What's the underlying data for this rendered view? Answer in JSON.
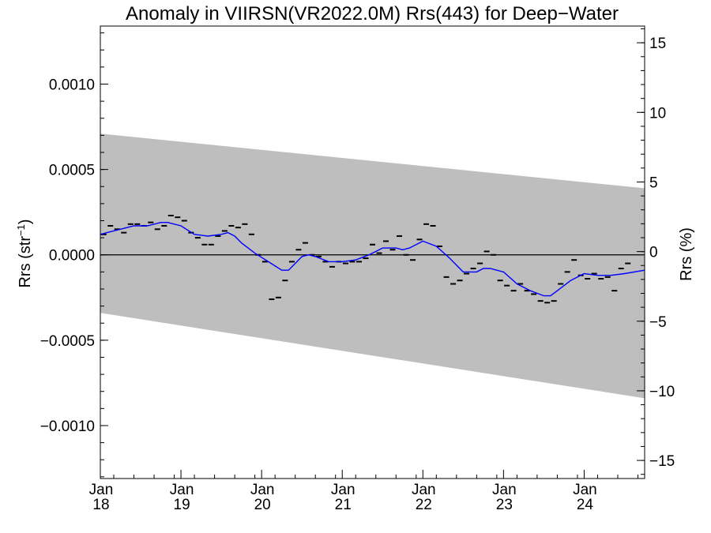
{
  "chart_data": {
    "type": "line",
    "title": "Anomaly in VIIRSN(VR2022.0M) Rrs(443) for Deep−Water",
    "ylabel_left": {
      "base": "Rrs (str",
      "sup": "−1",
      "close": ")"
    },
    "ylabel_right": "Rrs (%)",
    "x_axis": {
      "unit": "months since Jan 2018",
      "range": [
        0,
        81
      ],
      "ticks": [
        {
          "x": 0,
          "month": "Jan",
          "year": "18"
        },
        {
          "x": 12,
          "month": "Jan",
          "year": "19"
        },
        {
          "x": 24,
          "month": "Jan",
          "year": "20"
        },
        {
          "x": 36,
          "month": "Jan",
          "year": "21"
        },
        {
          "x": 48,
          "month": "Jan",
          "year": "22"
        },
        {
          "x": 60,
          "month": "Jan",
          "year": "23"
        },
        {
          "x": 72,
          "month": "Jan",
          "year": "24"
        }
      ]
    },
    "y_left": {
      "range": [
        -0.00131,
        0.00134
      ],
      "ticks": [
        {
          "v": 0.001,
          "label": "0.0010"
        },
        {
          "v": 0.0005,
          "label": "0.0005"
        },
        {
          "v": 0.0,
          "label": "0.0000"
        },
        {
          "v": -0.0005,
          "label": "−0.0005"
        },
        {
          "v": -0.001,
          "label": "−0.0010"
        }
      ]
    },
    "y_right": {
      "range": [
        -16.3,
        16.2
      ],
      "ticks": [
        {
          "v": 15,
          "label": "15"
        },
        {
          "v": 10,
          "label": "10"
        },
        {
          "v": 5,
          "label": "5"
        },
        {
          "v": 0,
          "label": "0"
        },
        {
          "v": -5,
          "label": "−5"
        },
        {
          "v": -10,
          "label": "−10"
        },
        {
          "v": -15,
          "label": "−15"
        }
      ]
    },
    "band": {
      "upper": [
        [
          0,
          0.00071
        ],
        [
          81,
          0.00039
        ]
      ],
      "lower": [
        [
          0,
          -0.00034
        ],
        [
          81,
          -0.00084
        ]
      ],
      "color": "#bebebe"
    },
    "zero_line": 0,
    "monthly_points": [
      [
        0.5,
        0.00012
      ],
      [
        1.5,
        0.00017
      ],
      [
        2.5,
        0.00015
      ],
      [
        3.5,
        0.00013
      ],
      [
        4.5,
        0.00018
      ],
      [
        5.5,
        0.00018
      ],
      [
        6.5,
        0.00017
      ],
      [
        7.5,
        0.00019
      ],
      [
        8.5,
        0.00015
      ],
      [
        9.5,
        0.00017
      ],
      [
        10.5,
        0.00023
      ],
      [
        11.5,
        0.00022
      ],
      [
        12.5,
        0.0002
      ],
      [
        13.5,
        0.00013
      ],
      [
        14.5,
        0.0001
      ],
      [
        15.5,
        6e-05
      ],
      [
        16.5,
        6e-05
      ],
      [
        17.5,
        0.00011
      ],
      [
        18.5,
        0.00014
      ],
      [
        19.5,
        0.00017
      ],
      [
        20.5,
        0.00016
      ],
      [
        21.5,
        0.00018
      ],
      [
        22.5,
        0.00012
      ],
      [
        23.5,
        0.0
      ],
      [
        24.5,
        -4e-05
      ],
      [
        25.5,
        -0.00026
      ],
      [
        26.5,
        -0.00025
      ],
      [
        27.5,
        -0.00015
      ],
      [
        28.5,
        -4e-05
      ],
      [
        29.5,
        3e-05
      ],
      [
        30.5,
        7e-05
      ],
      [
        31.5,
        0.0
      ],
      [
        32.5,
        -1e-05
      ],
      [
        33.5,
        -4e-05
      ],
      [
        34.5,
        -7e-05
      ],
      [
        35.5,
        -4e-05
      ],
      [
        36.5,
        -5e-05
      ],
      [
        37.5,
        -4e-05
      ],
      [
        38.5,
        -4e-05
      ],
      [
        39.5,
        -2e-05
      ],
      [
        40.5,
        6e-05
      ],
      [
        41.5,
        1e-05
      ],
      [
        42.5,
        8e-05
      ],
      [
        43.5,
        3e-05
      ],
      [
        44.5,
        0.00011
      ],
      [
        45.5,
        0.0
      ],
      [
        46.5,
        -3e-05
      ],
      [
        47.5,
        9e-05
      ],
      [
        48.5,
        0.00018
      ],
      [
        49.5,
        0.00017
      ],
      [
        50.5,
        5e-05
      ],
      [
        51.5,
        -0.00013
      ],
      [
        52.5,
        -0.00017
      ],
      [
        53.5,
        -0.00015
      ],
      [
        54.5,
        -0.00011
      ],
      [
        55.5,
        -8e-05
      ],
      [
        56.5,
        -5e-05
      ],
      [
        57.5,
        2e-05
      ],
      [
        58.5,
        0.0
      ],
      [
        59.5,
        -0.00015
      ],
      [
        60.5,
        -0.00018
      ],
      [
        61.5,
        -0.00021
      ],
      [
        62.5,
        -0.00017
      ],
      [
        63.5,
        -0.00021
      ],
      [
        64.5,
        -0.00023
      ],
      [
        65.5,
        -0.00027
      ],
      [
        66.5,
        -0.00028
      ],
      [
        67.5,
        -0.00027
      ],
      [
        68.5,
        -0.00017
      ],
      [
        69.5,
        -0.0001
      ],
      [
        70.5,
        -3e-05
      ],
      [
        71.5,
        -0.00012
      ],
      [
        72.5,
        -0.00014
      ],
      [
        73.5,
        -0.00011
      ],
      [
        74.5,
        -0.00014
      ],
      [
        75.5,
        -0.00013
      ],
      [
        76.5,
        -0.00021
      ],
      [
        77.5,
        -8e-05
      ],
      [
        78.5,
        -5e-05
      ]
    ],
    "smooth_line": {
      "color": "#0000ff",
      "points": [
        [
          0,
          0.00012
        ],
        [
          1,
          0.00013
        ],
        [
          3,
          0.00015
        ],
        [
          5,
          0.00017
        ],
        [
          7,
          0.00017
        ],
        [
          9,
          0.00019
        ],
        [
          10,
          0.00019
        ],
        [
          12,
          0.00017
        ],
        [
          14,
          0.00012
        ],
        [
          16,
          0.00011
        ],
        [
          18,
          0.00012
        ],
        [
          19,
          0.00013
        ],
        [
          20,
          0.00011
        ],
        [
          21,
          7e-05
        ],
        [
          23,
          1e-05
        ],
        [
          25,
          -4e-05
        ],
        [
          27,
          -9e-05
        ],
        [
          28,
          -9e-05
        ],
        [
          29,
          -5e-05
        ],
        [
          30,
          -1e-05
        ],
        [
          31,
          0.0
        ],
        [
          32,
          -1e-05
        ],
        [
          34,
          -4e-05
        ],
        [
          36,
          -4e-05
        ],
        [
          38,
          -3e-05
        ],
        [
          40,
          0.0
        ],
        [
          42,
          4e-05
        ],
        [
          44,
          4e-05
        ],
        [
          45,
          3e-05
        ],
        [
          46,
          4e-05
        ],
        [
          48,
          8e-05
        ],
        [
          50,
          5e-05
        ],
        [
          52,
          -2e-05
        ],
        [
          54,
          -0.0001
        ],
        [
          56,
          -0.0001
        ],
        [
          57,
          -8e-05
        ],
        [
          58,
          -8e-05
        ],
        [
          60,
          -0.0001
        ],
        [
          62,
          -0.00017
        ],
        [
          64,
          -0.00021
        ],
        [
          66,
          -0.00024
        ],
        [
          67,
          -0.00024
        ],
        [
          68,
          -0.00021
        ],
        [
          70,
          -0.00015
        ],
        [
          72,
          -0.00011
        ],
        [
          74,
          -0.00012
        ],
        [
          76,
          -0.00012
        ],
        [
          78,
          -0.00011
        ],
        [
          81,
          -9e-05
        ]
      ]
    },
    "colors": {
      "band": "#bebebe",
      "line": "#0000ff",
      "points": "#000000",
      "axes": "#000000"
    }
  }
}
